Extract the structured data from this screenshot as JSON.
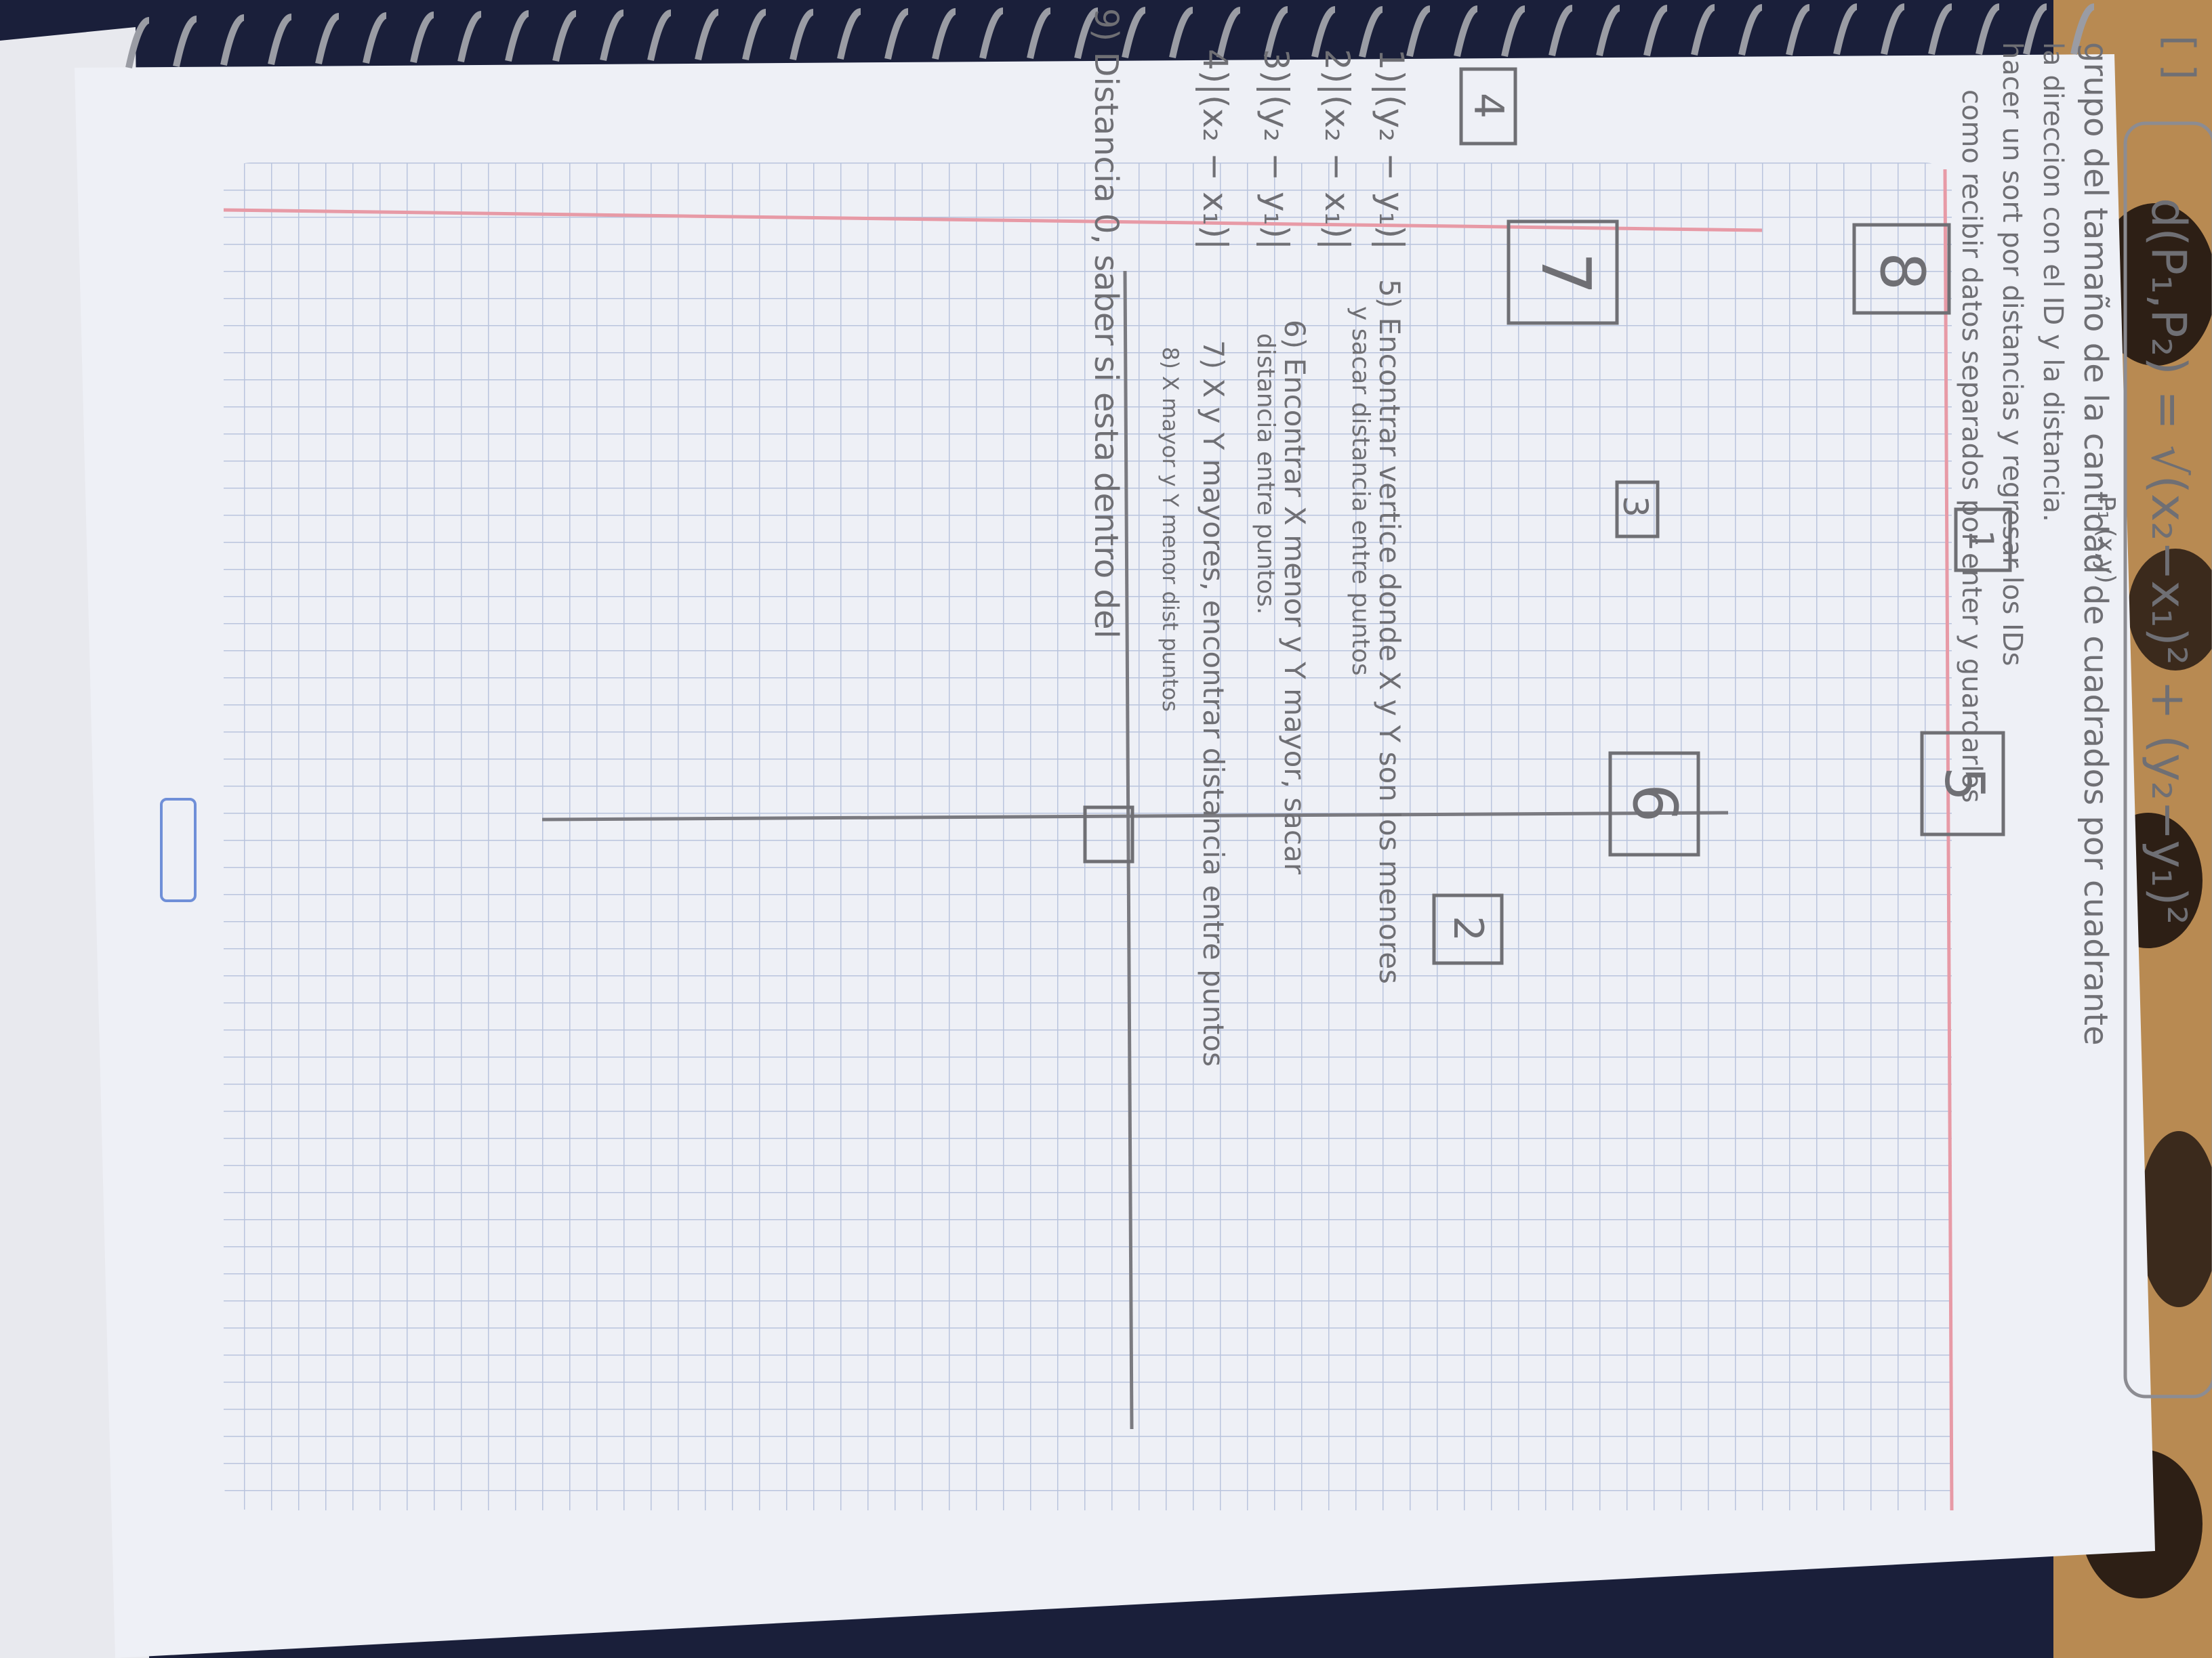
{
  "notebook": {
    "formula": "d(P₁,P₂) = √(x₂−x₁)² + (y₂−y₁)²",
    "notes": [
      "grupo del tamaño de la cantidad de cuadrados por cuadrante",
      "la direccion con el ID y la distancia.",
      "hacer un sort por distancias y regresar los IDs",
      "como recibir datos separados por enter y guardarlos"
    ],
    "steps": [
      "1)|(y₂ − y₁)|",
      "2)|(x₂ − x₁)|",
      "3)|(y₂ − y₁)|",
      "4)|(x₂ − x₁)|",
      "5) Encontrar vertice donde X y Y son los menores",
      "y sacar distancia entre puntos",
      "6) Encontrar X menor y Y mayor, sacar",
      "distancia entre puntos.",
      "7) X y Y mayores, encontrar distancia entre puntos",
      "8) X mayor y Y menor dist puntos",
      "9) Distancia 0, saber si esta dentro del"
    ],
    "boxes": [
      "1",
      "2",
      "3",
      "4",
      "5",
      "6",
      "7",
      "8"
    ],
    "point_label": "P₁ (x,y)",
    "top_bracket": "[ ]"
  },
  "colors": {
    "background": "#1a1f3a",
    "paper": "#eef0f6",
    "grid": "#b9c4dd",
    "margin": "#e79aa6",
    "pencil": "#6f6f74",
    "stamp": "#6f8fd8",
    "leopard": "#b88a52"
  }
}
